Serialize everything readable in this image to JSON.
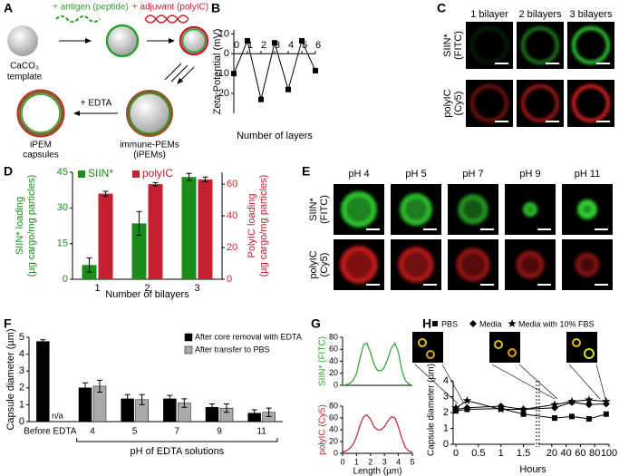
{
  "panel_labels": [
    "A",
    "B",
    "C",
    "D",
    "E",
    "F",
    "G",
    "H"
  ],
  "panel_a": {
    "antigen_label": "+ antigen (peptide)",
    "adjuvant_label": "+ adjuvant (polyIC)",
    "template_label": [
      "CaCO₃",
      "template"
    ],
    "edta_label": "+ EDTA",
    "capsules_label": [
      "iPEM",
      "capsules"
    ],
    "ipem_label": [
      "immune-PEMs",
      "(iPEMs)"
    ]
  },
  "panel_c": {
    "columns": [
      "1 bilayer",
      "2 bilayers",
      "3 bilayers"
    ],
    "rows": [
      [
        "SIIN*",
        "(FITC)"
      ],
      [
        "polyIC",
        "(Cy5)"
      ]
    ]
  },
  "panel_e": {
    "columns": [
      "pH 4",
      "pH 5",
      "pH 7",
      "pH 9",
      "pH 11"
    ],
    "rows": [
      [
        "SIIN*",
        "(FITC)"
      ],
      [
        "polyIC",
        "(Cy5)"
      ]
    ]
  },
  "chart_data": [
    {
      "type": "line",
      "ylabel": "Zeta Potential (mV)",
      "xlabel": "Number of layers",
      "x": [
        0,
        1,
        2,
        3,
        4,
        5,
        6
      ],
      "values": [
        -10,
        6.5,
        -23,
        5.5,
        -18,
        6.5,
        -8.5
      ],
      "color": "#000000",
      "xlim": [
        0,
        6
      ],
      "xticks": [
        0,
        1,
        2,
        3,
        4,
        5,
        6
      ],
      "ylim": [
        -30,
        12
      ],
      "yticks": [
        -20,
        -10,
        0,
        10
      ]
    },
    {
      "type": "bar",
      "categories": [
        "1",
        "2",
        "3"
      ],
      "xlabel": "Number of bilayers",
      "ylabel": [
        "SIIN* loading",
        "(µg cargo/mg particles)"
      ],
      "y2label": [
        "PolyIC loading",
        "(µg cargo/mg particles)"
      ],
      "series": [
        {
          "name": "SIIN*",
          "color": "#1a8c1a",
          "values": [
            6,
            23.5,
            43
          ],
          "errors": [
            3,
            5,
            1.5
          ]
        },
        {
          "name": "polyIC",
          "color": "#c4202f",
          "values": [
            54,
            60,
            63
          ],
          "errors": [
            1.5,
            1,
            1.5
          ],
          "axis": "y2"
        }
      ],
      "ylim": [
        0,
        45
      ],
      "yticks": [
        0,
        15,
        30,
        45
      ],
      "y2lim": [
        0,
        67.5
      ],
      "y2ticks": [
        0,
        20,
        40,
        60
      ]
    },
    {
      "type": "bar",
      "categories": [
        "Before EDTA",
        "4",
        "5",
        "7",
        "9",
        "11"
      ],
      "ylabel": "Capsule diameter (µm)",
      "xgroup_label": "pH of EDTA solutions",
      "na_label": "n/a",
      "series": [
        {
          "name": "After core removal with EDTA",
          "color": "#000000",
          "values": [
            4.75,
            2.0,
            1.35,
            1.35,
            0.85,
            0.5
          ],
          "errors": [
            0.1,
            0.3,
            0.25,
            0.2,
            0.2,
            0.2
          ]
        },
        {
          "name": "After transfer to PBS",
          "color": "#aaaaaa",
          "values": [
            null,
            2.1,
            1.3,
            1.1,
            0.8,
            0.55
          ],
          "errors": [
            null,
            0.35,
            0.3,
            0.25,
            0.25,
            0.25
          ]
        }
      ],
      "ylim": [
        0,
        5
      ],
      "yticks": [
        0,
        1,
        2,
        3,
        4,
        5
      ]
    },
    {
      "type": "line",
      "ylabel": "SIIN* (FITC)",
      "color": "#2ca02c",
      "x": [
        0,
        0.25,
        0.5,
        0.75,
        1,
        1.25,
        1.5,
        1.75,
        2,
        2.25,
        2.5,
        2.75,
        3,
        3.25,
        3.5,
        3.75,
        4,
        4.25,
        4.5,
        4.75,
        5
      ],
      "values": [
        0,
        1,
        3,
        8,
        20,
        45,
        68,
        70,
        55,
        35,
        25,
        24,
        30,
        45,
        62,
        70,
        55,
        25,
        8,
        2,
        0
      ],
      "xlim": [
        0,
        5
      ],
      "ylim": [
        0,
        80
      ],
      "yticks": [
        0,
        20,
        40,
        60,
        80
      ]
    },
    {
      "type": "line",
      "ylabel": "polyIC (Cy5)",
      "xlabel": "Length (µm)",
      "color": "#c4202f",
      "x": [
        0,
        0.25,
        0.5,
        0.75,
        1,
        1.25,
        1.5,
        1.75,
        2,
        2.25,
        2.5,
        2.75,
        3,
        3.25,
        3.5,
        3.75,
        4,
        4.25,
        4.5,
        4.75,
        5
      ],
      "values": [
        2,
        4,
        8,
        15,
        28,
        48,
        62,
        65,
        58,
        45,
        40,
        40,
        45,
        55,
        62,
        60,
        45,
        25,
        10,
        4,
        2
      ],
      "xlim": [
        0,
        5
      ],
      "xticks": [
        0,
        1,
        2,
        3,
        4,
        5
      ],
      "ylim": [
        0,
        80
      ],
      "yticks": [
        0,
        20,
        40,
        60,
        80
      ]
    },
    {
      "type": "line",
      "ylabel": "Capsule diameter (µm)",
      "xlabel": "Hours",
      "x": [
        0,
        0.25,
        1,
        1.5,
        24,
        48,
        72,
        96
      ],
      "series": [
        {
          "name": "PBS",
          "marker": "square",
          "color": "#000000",
          "values": [
            2.1,
            2.2,
            2.25,
            1.9,
            1.65,
            1.75,
            1.6,
            1.9
          ]
        },
        {
          "name": "Media",
          "marker": "diamond",
          "color": "#000000",
          "values": [
            2.2,
            2.3,
            2.4,
            2.2,
            2.3,
            2.65,
            2.5,
            2.55
          ]
        },
        {
          "name": "Media with 10% FBS",
          "marker": "star",
          "color": "#000000",
          "values": [
            2.3,
            2.75,
            2.2,
            2.2,
            2.5,
            2.7,
            2.8,
            2.7
          ]
        }
      ],
      "xlim": [
        [
          0,
          1.75
        ],
        [
          5,
          100
        ]
      ],
      "xticks": [
        0,
        0.5,
        1,
        1.5,
        20,
        40,
        60,
        80,
        100
      ],
      "ylim": [
        0,
        4
      ],
      "yticks": [
        0,
        1,
        2,
        3,
        4
      ]
    }
  ]
}
